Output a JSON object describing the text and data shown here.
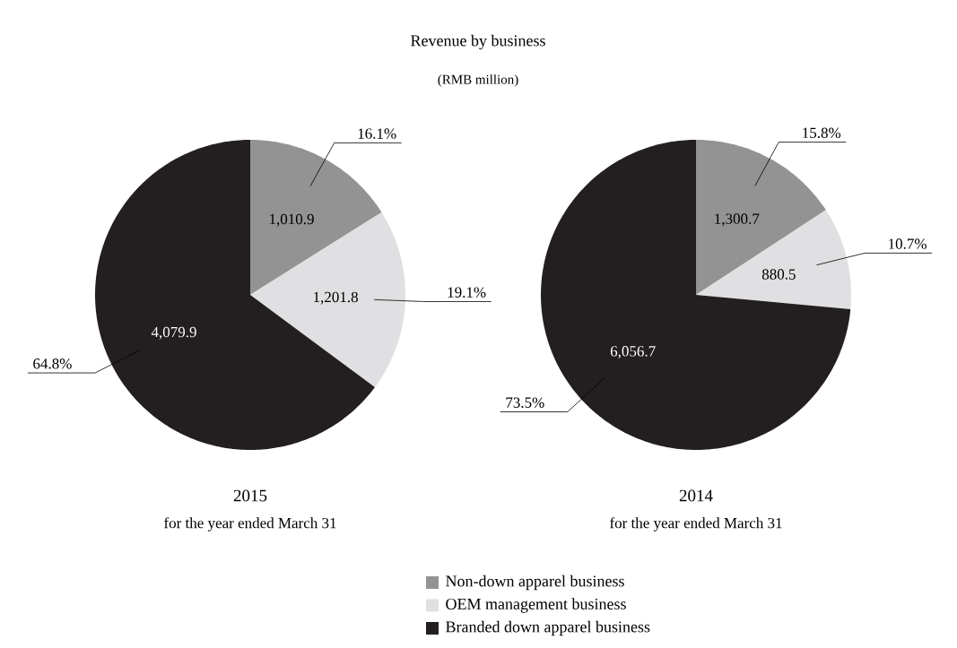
{
  "chart_data": [
    {
      "type": "pie",
      "title": "Revenue by business",
      "subtitle": "(RMB million)",
      "xlabel": "2015",
      "categories": [
        "Non-down apparel business",
        "OEM management business",
        "Branded down apparel business"
      ],
      "values": [
        1010.9,
        1201.8,
        4079.9
      ],
      "value_labels": [
        "1,010.9",
        "1,201.8",
        "4,079.9"
      ],
      "colors": [
        "#939393",
        "#e0e0e2",
        "#231f20"
      ],
      "annotations": [
        "16.1%",
        "19.1%",
        "64.8%",
        "for the year ended March 31"
      ],
      "legend": "bottom"
    },
    {
      "type": "pie",
      "xlabel": "2014",
      "categories": [
        null,
        null,
        null
      ],
      "values": [
        1300.7,
        880.5,
        6056.7
      ],
      "value_labels": [
        "1,300.7",
        "880.5",
        "6,056.7"
      ],
      "colors": [
        "#939393",
        "#e0e0e2",
        "#231f20"
      ],
      "annotations": [
        "15.8%",
        "10.7%",
        "73.5%",
        "for the year ended March 31"
      ]
    }
  ]
}
